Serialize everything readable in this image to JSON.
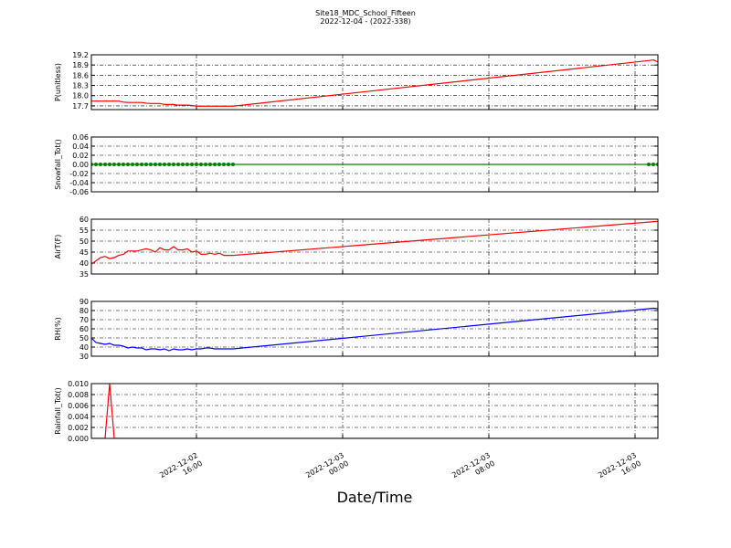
{
  "figure": {
    "title": "Site18_MDC_School_Fifteen",
    "subtitle": "2022-12-04 - (2022-338)",
    "xlabel": "Date/Time",
    "x": [
      "2022-12-02 10:15",
      "2022-12-02 10:30",
      "2022-12-02 10:45",
      "2022-12-02 11:00",
      "2022-12-02 11:15",
      "2022-12-02 11:30",
      "2022-12-02 11:45",
      "2022-12-02 12:00",
      "2022-12-02 12:15",
      "2022-12-02 12:30",
      "2022-12-02 12:45",
      "2022-12-02 13:00",
      "2022-12-02 13:15",
      "2022-12-02 13:30",
      "2022-12-02 13:45",
      "2022-12-02 14:00",
      "2022-12-02 14:15",
      "2022-12-02 14:30",
      "2022-12-02 14:45",
      "2022-12-02 15:00",
      "2022-12-02 15:15",
      "2022-12-02 15:30",
      "2022-12-02 15:45",
      "2022-12-02 16:00",
      "2022-12-02 16:15",
      "2022-12-02 16:30",
      "2022-12-02 16:45",
      "2022-12-02 17:00",
      "2022-12-02 17:15",
      "2022-12-02 17:30",
      "2022-12-02 17:45",
      "2022-12-02 18:00",
      "2022-12-03 16:45",
      "2022-12-03 17:00",
      "2022-12-03 17:15"
    ],
    "xlim": [
      "2022-12-02 10:15",
      "2022-12-03 17:15"
    ],
    "xticks": [
      "2022-12-02 16:00",
      "2022-12-03 00:00",
      "2022-12-03 08:00",
      "2022-12-03 16:00"
    ]
  },
  "chart_data": [
    {
      "type": "line",
      "ylabel": "P(unitless)",
      "color": "#ff0000",
      "ylim": [
        17.59,
        19.2
      ],
      "yticks": [
        17.7,
        {
          "value": 18,
          "label": "18.0"
        },
        18.3,
        18.6,
        18.9,
        19.2
      ],
      "grid": true,
      "values": [
        17.84,
        17.84,
        17.84,
        17.84,
        17.84,
        17.84,
        17.84,
        17.81,
        17.8,
        17.8,
        17.8,
        17.8,
        17.78,
        17.77,
        17.77,
        17.77,
        17.74,
        17.74,
        17.74,
        17.72,
        17.72,
        17.72,
        17.71,
        17.69,
        17.69,
        17.69,
        17.69,
        17.69,
        17.69,
        17.69,
        17.69,
        17.69,
        19.03,
        19.05,
        18.99
      ]
    },
    {
      "type": "line",
      "ylabel": "Snowfall_Tot()",
      "color": "#008000",
      "marker": true,
      "ylim": [
        -0.06,
        0.06
      ],
      "yticks": [
        -0.06,
        -0.04,
        -0.02,
        {
          "value": 0,
          "label": "0.00"
        },
        0.02,
        0.04,
        0.06
      ],
      "grid": true,
      "values": [
        0,
        0,
        0,
        0,
        0,
        0,
        0,
        0,
        0,
        0,
        0,
        0,
        0,
        0,
        0,
        0,
        0,
        0,
        0,
        0,
        0,
        0,
        0,
        0,
        0,
        0,
        0,
        0,
        0,
        0,
        0,
        0,
        0,
        0,
        0
      ]
    },
    {
      "type": "line",
      "ylabel": "AirT(F)",
      "color": "#ff0000",
      "ylim": [
        35,
        60
      ],
      "yticks": [
        35,
        40,
        45,
        50,
        55,
        60
      ],
      "grid": true,
      "values": [
        39.5,
        41,
        42.5,
        43,
        42,
        42.5,
        43.5,
        44,
        45.5,
        45.5,
        45.5,
        46,
        46.5,
        46,
        45,
        47,
        46,
        46,
        47.5,
        46,
        46,
        46.5,
        45,
        45.5,
        44,
        44,
        44.5,
        44,
        44.5,
        43.5,
        43.5,
        43.5,
        58.7,
        58.9,
        59
      ]
    },
    {
      "type": "line",
      "ylabel": "RH(%)",
      "color": "#0000ff",
      "ylim": [
        30,
        90
      ],
      "yticks": [
        30,
        40,
        50,
        60,
        70,
        80,
        90
      ],
      "grid": true,
      "values": [
        50,
        45,
        44,
        43,
        44,
        42,
        42,
        41,
        39,
        40,
        39,
        39,
        37,
        38,
        38,
        37,
        38,
        36,
        38,
        37,
        37,
        38,
        37,
        38,
        38,
        39,
        39,
        38,
        38,
        38,
        38,
        38,
        82,
        82.5,
        82
      ]
    },
    {
      "type": "line",
      "ylabel": "Rainfall_Tot()",
      "color": "#ff0000",
      "ylim": [
        0,
        0.01
      ],
      "yticks": [
        {
          "value": 0,
          "label": "0.000"
        },
        {
          "value": 0.002,
          "label": "0.002"
        },
        {
          "value": 0.004,
          "label": "0.004"
        },
        {
          "value": 0.006,
          "label": "0.006"
        },
        {
          "value": 0.008,
          "label": "0.008"
        },
        {
          "value": 0.01,
          "label": "0.010"
        }
      ],
      "grid": true,
      "values": [
        0,
        0,
        0,
        0,
        0.01,
        0,
        0,
        0,
        0,
        0,
        0,
        0,
        0,
        0,
        0,
        0,
        0,
        0,
        0,
        0,
        0,
        0,
        0,
        0,
        0,
        0,
        0,
        0,
        0,
        0,
        0,
        0,
        0,
        0,
        0
      ]
    }
  ]
}
